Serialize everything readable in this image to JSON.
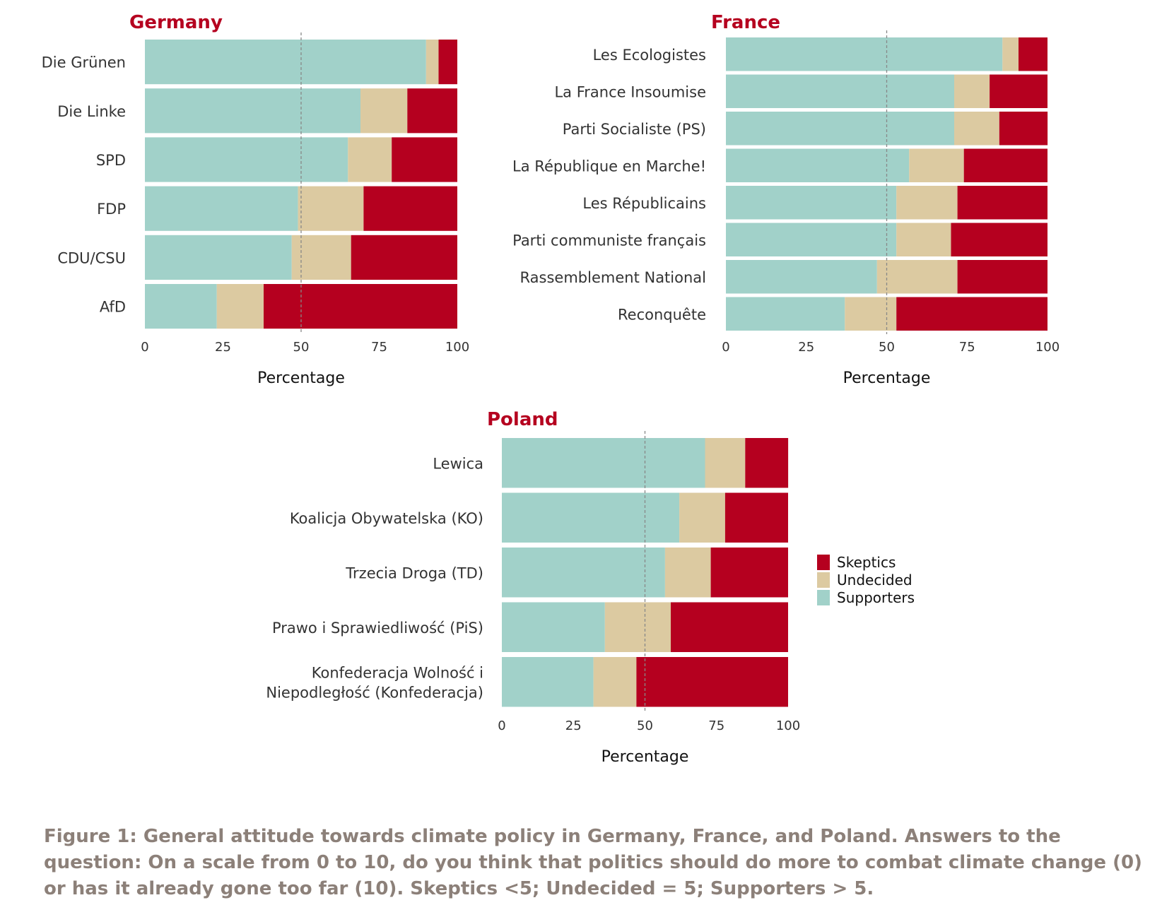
{
  "caption": "Figure 1: General attitude towards climate policy in Germany, France, and Poland. Answers to the question: On a scale from 0 to 10, do you think that politics should do more to combat climate change (0) or has it already gone too far (10). Skeptics <5; Undecided = 5; Supporters > 5.",
  "colors": {
    "title": "#b5001f",
    "supporters": "#a1d1c9",
    "undecided": "#dccaa1",
    "skeptics": "#b5001f",
    "reference_line": "#888888",
    "text": "#333333"
  },
  "legend": {
    "position": "right-of-poland-panel",
    "entries": [
      "Skeptics",
      "Undecided",
      "Supporters"
    ]
  },
  "chart_data": [
    {
      "type": "bar",
      "orientation": "horizontal",
      "stacked": true,
      "title": "Germany",
      "xlabel": "Percentage",
      "xlim": [
        0,
        100
      ],
      "xticks": [
        "0",
        "25",
        "50",
        "75",
        "100"
      ],
      "reference_line": 50,
      "categories": [
        "Die Grünen",
        "Die Linke",
        "SPD",
        "FDP",
        "CDU/CSU",
        "AfD"
      ],
      "series": [
        {
          "name": "Supporters",
          "values": [
            90,
            69,
            65,
            49,
            47,
            23
          ]
        },
        {
          "name": "Undecided",
          "values": [
            4,
            15,
            14,
            21,
            19,
            15
          ]
        },
        {
          "name": "Skeptics",
          "values": [
            6,
            16,
            21,
            30,
            34,
            62
          ]
        }
      ]
    },
    {
      "type": "bar",
      "orientation": "horizontal",
      "stacked": true,
      "title": "France",
      "xlabel": "Percentage",
      "xlim": [
        0,
        100
      ],
      "xticks": [
        "0",
        "25",
        "50",
        "75",
        "100"
      ],
      "reference_line": 50,
      "categories": [
        "Les Ecologistes",
        "La France Insoumise",
        "Parti Socialiste (PS)",
        "La République en Marche!",
        "Les Républicains",
        "Parti communiste français",
        "Rassemblement National",
        "Reconquête"
      ],
      "series": [
        {
          "name": "Supporters",
          "values": [
            86,
            71,
            71,
            57,
            53,
            53,
            47,
            37
          ]
        },
        {
          "name": "Undecided",
          "values": [
            5,
            11,
            14,
            17,
            19,
            17,
            25,
            16
          ]
        },
        {
          "name": "Skeptics",
          "values": [
            9,
            18,
            15,
            26,
            28,
            30,
            28,
            47
          ]
        }
      ]
    },
    {
      "type": "bar",
      "orientation": "horizontal",
      "stacked": true,
      "title": "Poland",
      "xlabel": "Percentage",
      "xlim": [
        0,
        100
      ],
      "xticks": [
        "0",
        "25",
        "50",
        "75",
        "100"
      ],
      "reference_line": 50,
      "categories": [
        "Lewica",
        "Koalicja Obywatelska (KO)",
        "Trzecia Droga (TD)",
        "Prawo i Sprawiedliwość (PiS)",
        "Konfederacja Wolność i Niepodległość (Konfederacja)"
      ],
      "category_lines": [
        [
          "Lewica"
        ],
        [
          "Koalicja Obywatelska (KO)"
        ],
        [
          "Trzecia Droga (TD)"
        ],
        [
          "Prawo i Sprawiedliwość (PiS)"
        ],
        [
          "Konfederacja Wolność i",
          "Niepodległość (Konfederacja)"
        ]
      ],
      "series": [
        {
          "name": "Supporters",
          "values": [
            71,
            62,
            57,
            36,
            32
          ]
        },
        {
          "name": "Undecided",
          "values": [
            14,
            16,
            16,
            23,
            15
          ]
        },
        {
          "name": "Skeptics",
          "values": [
            15,
            22,
            27,
            41,
            53
          ]
        }
      ]
    }
  ]
}
